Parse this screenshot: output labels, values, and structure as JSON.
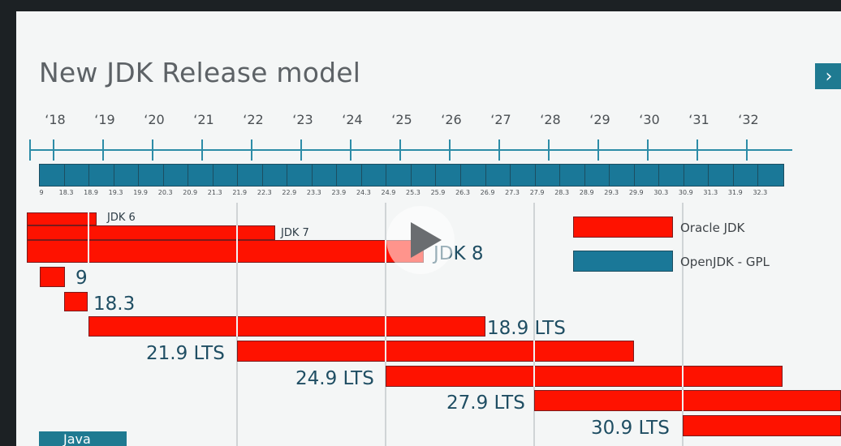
{
  "slide": {
    "title": "New JDK Release model",
    "next_icon": "›",
    "footer_tab": "Java"
  },
  "timeline": {
    "years": [
      "‘18",
      "‘19",
      "‘20",
      "‘21",
      "‘22",
      "‘23",
      "‘24",
      "‘25",
      "‘26",
      "‘27",
      "‘28",
      "‘29",
      "‘30",
      "‘31",
      "‘32"
    ],
    "versions": [
      "9",
      "18.3",
      "18.9",
      "19.3",
      "19.9",
      "20.3",
      "20.9",
      "21.3",
      "21.9",
      "22.3",
      "22.9",
      "23.3",
      "23.9",
      "24.3",
      "24.9",
      "25.3",
      "25.9",
      "26.3",
      "26.9",
      "27.3",
      "27.9",
      "28.3",
      "28.9",
      "29.3",
      "29.9",
      "30.3",
      "30.9",
      "31.3",
      "31.9",
      "32.3"
    ]
  },
  "releases": {
    "jdk6": "JDK 6",
    "jdk7": "JDK 7",
    "jdk8": "JDK 8",
    "v9": "9",
    "v183": "18.3",
    "v189": "18.9 LTS",
    "v219": "21.9 LTS",
    "v249": "24.9 LTS",
    "v279": "27.9 LTS",
    "v309": "30.9 LTS"
  },
  "legend": {
    "oracle": "Oracle JDK",
    "openjdk": "OpenJDK - GPL"
  },
  "colors": {
    "oracle_red": "#fe1200",
    "openjdk_teal": "#1a7898"
  }
}
